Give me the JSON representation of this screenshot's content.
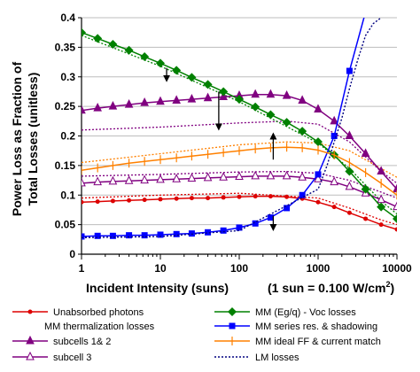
{
  "chart_data": {
    "type": "line",
    "xlabel": "Incident Intensity (suns)",
    "xnote": "(1 sun = 0.100 W/cm",
    "xnote_sup": "2",
    "xnote_end": ")",
    "ylabel_line1": "Power Loss as Fraction of",
    "ylabel_line2": "Total Losses  (unitless)",
    "xscale": "log",
    "xlim": [
      1,
      10000
    ],
    "ylim": [
      0,
      0.4
    ],
    "grid": "horizontal",
    "legend_position": "bottom",
    "x_ticks": [
      {
        "value": 1,
        "label": "1"
      },
      {
        "value": 10,
        "label": "10"
      },
      {
        "value": 100,
        "label": "100"
      },
      {
        "value": 1000,
        "label": "1000"
      },
      {
        "value": 10000,
        "label": "10000"
      }
    ],
    "y_ticks": [
      {
        "value": 0,
        "label": "0"
      },
      {
        "value": 0.05,
        "label": "0.05"
      },
      {
        "value": 0.1,
        "label": "0.1"
      },
      {
        "value": 0.15,
        "label": "0.15"
      },
      {
        "value": 0.2,
        "label": "0.2"
      },
      {
        "value": 0.25,
        "label": "0.25"
      },
      {
        "value": 0.3,
        "label": "0.3"
      },
      {
        "value": 0.35,
        "label": "0.35"
      },
      {
        "value": 0.4,
        "label": "0.4"
      }
    ],
    "series": [
      {
        "name": "Unabsorbed photons",
        "color": "#dd0000",
        "marker": "circle",
        "x": [
          1,
          1.6,
          2.5,
          4,
          6.3,
          10,
          16,
          25,
          40,
          63,
          100,
          160,
          250,
          400,
          630,
          1000,
          1600,
          2500,
          4000,
          6300,
          10000
        ],
        "y": [
          0.088,
          0.089,
          0.09,
          0.091,
          0.092,
          0.093,
          0.094,
          0.095,
          0.095,
          0.096,
          0.097,
          0.098,
          0.098,
          0.097,
          0.094,
          0.088,
          0.08,
          0.07,
          0.06,
          0.05,
          0.042
        ]
      },
      {
        "name": "subcells 1& 2",
        "legend_group": "MM thermalization losses",
        "color": "#800080",
        "marker": "triangle",
        "x": [
          1,
          1.6,
          2.5,
          4,
          6.3,
          10,
          16,
          25,
          40,
          63,
          100,
          160,
          250,
          400,
          630,
          1000,
          1600,
          2500,
          4000,
          6300,
          10000
        ],
        "y": [
          0.243,
          0.247,
          0.25,
          0.253,
          0.256,
          0.258,
          0.26,
          0.262,
          0.264,
          0.266,
          0.268,
          0.27,
          0.27,
          0.268,
          0.26,
          0.245,
          0.225,
          0.2,
          0.17,
          0.14,
          0.11
        ]
      },
      {
        "name": "subcell 3",
        "color": "#800080",
        "marker": "triangle-open",
        "x": [
          1,
          1.6,
          2.5,
          4,
          6.3,
          10,
          16,
          25,
          40,
          63,
          100,
          160,
          250,
          400,
          630,
          1000,
          1600,
          2500,
          4000,
          6300,
          10000
        ],
        "y": [
          0.12,
          0.122,
          0.123,
          0.124,
          0.125,
          0.126,
          0.127,
          0.128,
          0.129,
          0.13,
          0.131,
          0.132,
          0.132,
          0.132,
          0.13,
          0.127,
          0.122,
          0.114,
          0.103,
          0.092,
          0.08
        ]
      },
      {
        "name": "MM (Eg/q) - Voc losses",
        "color": "#008000",
        "marker": "diamond",
        "x": [
          1,
          1.6,
          2.5,
          4,
          6.3,
          10,
          16,
          25,
          40,
          63,
          100,
          160,
          250,
          400,
          630,
          1000,
          1600,
          2500,
          4000,
          6300,
          10000
        ],
        "y": [
          0.375,
          0.365,
          0.355,
          0.345,
          0.334,
          0.323,
          0.311,
          0.299,
          0.287,
          0.275,
          0.262,
          0.249,
          0.236,
          0.223,
          0.208,
          0.19,
          0.168,
          0.14,
          0.11,
          0.08,
          0.06
        ]
      },
      {
        "name": "MM series res. & shadowing",
        "color": "#0000ff",
        "marker": "square",
        "x": [
          1,
          1.6,
          2.5,
          4,
          6.3,
          10,
          16,
          25,
          40,
          63,
          100,
          160,
          250,
          400,
          630,
          1000,
          1600,
          2500,
          4000
        ],
        "y": [
          0.03,
          0.031,
          0.031,
          0.032,
          0.032,
          0.033,
          0.034,
          0.035,
          0.037,
          0.04,
          0.045,
          0.052,
          0.062,
          0.078,
          0.1,
          0.135,
          0.2,
          0.31,
          0.41
        ]
      },
      {
        "name": "MM ideal FF & current match",
        "color": "#ff8000",
        "marker": "plus",
        "x": [
          1,
          1.6,
          2.5,
          4,
          6.3,
          10,
          16,
          25,
          40,
          63,
          100,
          160,
          250,
          400,
          630,
          1000,
          1600,
          2500,
          4000,
          6300,
          10000
        ],
        "y": [
          0.142,
          0.146,
          0.15,
          0.154,
          0.157,
          0.16,
          0.163,
          0.166,
          0.169,
          0.172,
          0.175,
          0.178,
          0.18,
          0.181,
          0.18,
          0.176,
          0.168,
          0.155,
          0.138,
          0.12,
          0.1
        ]
      },
      {
        "name": "LM losses",
        "color": "#000080",
        "marker": "none",
        "style": "dotted",
        "x": [
          1,
          10,
          100,
          1000,
          1300,
          1600,
          2000,
          2500,
          3200,
          4000,
          5000,
          6300
        ],
        "y": [
          0.028,
          0.03,
          0.04,
          0.11,
          0.15,
          0.19,
          0.23,
          0.28,
          0.33,
          0.37,
          0.39,
          0.4
        ]
      }
    ],
    "dotted_companions": [
      {
        "color": "#800080",
        "x": [
          1,
          10,
          100,
          400,
          1000,
          2500,
          6300,
          10000
        ],
        "y": [
          0.21,
          0.215,
          0.222,
          0.225,
          0.22,
          0.19,
          0.14,
          0.12
        ]
      },
      {
        "color": "#800080",
        "x": [
          1,
          10,
          100,
          400,
          1000,
          2500,
          6300,
          10000
        ],
        "y": [
          0.132,
          0.135,
          0.139,
          0.14,
          0.137,
          0.125,
          0.105,
          0.095
        ]
      },
      {
        "color": "#ff8000",
        "x": [
          1,
          10,
          100,
          400,
          1000,
          2500,
          6300,
          10000
        ],
        "y": [
          0.155,
          0.17,
          0.185,
          0.19,
          0.188,
          0.175,
          0.145,
          0.13
        ]
      },
      {
        "color": "#008000",
        "x": [
          1,
          10,
          100,
          1000,
          2500,
          6300,
          10000
        ],
        "y": [
          0.37,
          0.318,
          0.258,
          0.188,
          0.145,
          0.09,
          0.068
        ]
      },
      {
        "color": "#dd0000",
        "x": [
          1,
          10,
          100,
          1000,
          2500,
          6300,
          10000
        ],
        "y": [
          0.095,
          0.1,
          0.103,
          0.095,
          0.078,
          0.058,
          0.05
        ]
      }
    ],
    "arrows": [
      {
        "x": 12,
        "y_from": 0.315,
        "y_to": 0.297,
        "direction": "down"
      },
      {
        "x": 55,
        "y_from": 0.275,
        "y_to": 0.215,
        "direction": "down"
      },
      {
        "x": 270,
        "y_from": 0.16,
        "y_to": 0.2,
        "direction": "up"
      },
      {
        "x": 270,
        "y_from": 0.065,
        "y_to": 0.045,
        "direction": "down"
      }
    ],
    "legend": {
      "left": [
        {
          "label": "Unabsorbed photons",
          "series": 0
        },
        {
          "label": "MM thermalization losses",
          "series": null
        },
        {
          "label": "subcells 1& 2",
          "series": 1
        },
        {
          "label": "subcell 3",
          "series": 2
        }
      ],
      "right": [
        {
          "label": "MM (Eg/q) - Voc losses",
          "series": 3
        },
        {
          "label": "MM series res. & shadowing",
          "series": 4
        },
        {
          "label": "MM ideal FF & current match",
          "series": 5
        },
        {
          "label": "LM losses",
          "series": 6
        }
      ]
    }
  }
}
